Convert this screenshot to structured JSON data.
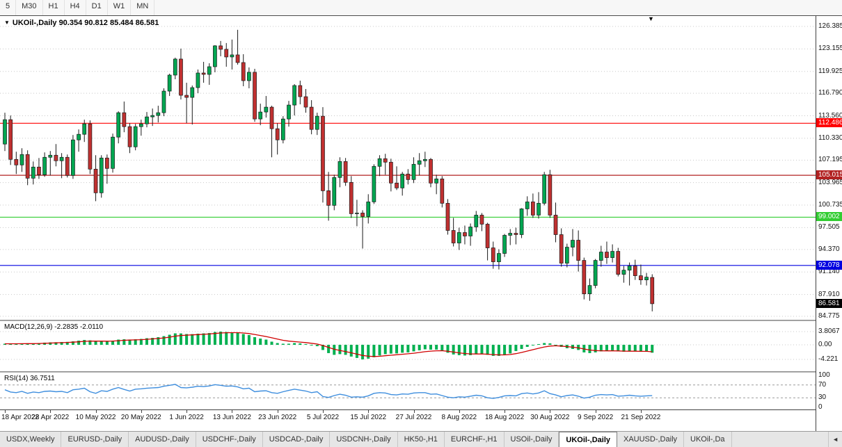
{
  "toolbar": {
    "periods": [
      "5",
      "M30",
      "H1",
      "H4",
      "D1",
      "W1",
      "MN"
    ]
  },
  "chart": {
    "collapse_icon": "▼",
    "symbol_title": "UKOil-,Daily",
    "ohlc_text": "90.354 90.812 85.484 86.581",
    "shift_marker_icon": "▼",
    "price_axis_labels": [
      "126.385",
      "123.155",
      "119.925",
      "116.790",
      "113.560",
      "110.330",
      "107.195",
      "103.965",
      "100.735",
      "97.505",
      "94.370",
      "91.140",
      "87.910",
      "84.775"
    ],
    "levels": [
      {
        "price": 112.486,
        "label": "112.486",
        "color": "#FF0000"
      },
      {
        "price": 105.015,
        "label": "105.015",
        "color": "#B22222"
      },
      {
        "price": 99.002,
        "label": "99.002",
        "color": "#32CD32"
      },
      {
        "price": 92.078,
        "label": "92.078",
        "color": "#0000E0"
      }
    ],
    "current_price": {
      "price": 86.581,
      "label": "86.581",
      "color": "#000000"
    }
  },
  "chart_data": {
    "type": "candlestick",
    "symbol": "UKOil-",
    "timeframe": "Daily",
    "title": "UKOil-,Daily 90.354 90.812 85.484 86.581",
    "y_axis": {
      "max": 126.385,
      "min": 84.775
    },
    "x_labels": [
      {
        "i": 0,
        "label": "18 Apr 2022"
      },
      {
        "i": 8,
        "label": "28 Apr 2022"
      },
      {
        "i": 16,
        "label": "10 May 2022"
      },
      {
        "i": 24,
        "label": "20 May 2022"
      },
      {
        "i": 32,
        "label": "1 Jun 2022"
      },
      {
        "i": 40,
        "label": "13 Jun 2022"
      },
      {
        "i": 48,
        "label": "23 Jun 2022"
      },
      {
        "i": 56,
        "label": "5 Jul 2022"
      },
      {
        "i": 64,
        "label": "15 Jul 2022"
      },
      {
        "i": 72,
        "label": "27 Jul 2022"
      },
      {
        "i": 80,
        "label": "8 Aug 2022"
      },
      {
        "i": 88,
        "label": "18 Aug 2022"
      },
      {
        "i": 96,
        "label": "30 Aug 2022"
      },
      {
        "i": 104,
        "label": "9 Sep 2022"
      },
      {
        "i": 112,
        "label": "21 Sep 2022"
      }
    ],
    "candles": [
      [
        109.5,
        114.0,
        108.5,
        113.0
      ],
      [
        113.0,
        113.6,
        106.5,
        107.3
      ],
      [
        107.3,
        108.4,
        105.2,
        106.5
      ],
      [
        106.5,
        108.9,
        105.5,
        108.0
      ],
      [
        108.0,
        108.6,
        103.6,
        104.6
      ],
      [
        104.6,
        107.0,
        103.7,
        106.2
      ],
      [
        106.2,
        107.5,
        104.5,
        105.1
      ],
      [
        105.1,
        108.3,
        104.8,
        107.6
      ],
      [
        107.6,
        108.5,
        105.0,
        107.9
      ],
      [
        107.9,
        109.5,
        106.3,
        107.1
      ],
      [
        107.1,
        108.2,
        104.6,
        107.6
      ],
      [
        107.6,
        108.0,
        104.7,
        105.0
      ],
      [
        105.0,
        110.8,
        104.5,
        110.1
      ],
      [
        110.1,
        111.6,
        108.4,
        110.9
      ],
      [
        110.9,
        113.0,
        109.8,
        112.4
      ],
      [
        112.4,
        112.9,
        105.2,
        105.9
      ],
      [
        105.9,
        107.9,
        101.3,
        102.5
      ],
      [
        102.5,
        107.9,
        101.8,
        107.5
      ],
      [
        107.5,
        108.0,
        103.8,
        106.0
      ],
      [
        106.0,
        111.0,
        105.4,
        110.5
      ],
      [
        110.5,
        114.2,
        109.6,
        114.0
      ],
      [
        114.0,
        115.6,
        111.2,
        112.0
      ],
      [
        112.0,
        112.5,
        108.2,
        109.1
      ],
      [
        109.1,
        112.4,
        108.6,
        112.0
      ],
      [
        112.0,
        113.0,
        110.7,
        112.4
      ],
      [
        112.4,
        114.1,
        111.9,
        113.4
      ],
      [
        113.4,
        114.6,
        112.1,
        113.6
      ],
      [
        113.6,
        115.0,
        112.6,
        114.0
      ],
      [
        114.0,
        117.5,
        113.5,
        117.1
      ],
      [
        117.1,
        119.6,
        116.4,
        119.4
      ],
      [
        119.4,
        121.9,
        118.8,
        121.7
      ],
      [
        121.7,
        123.2,
        115.9,
        116.5
      ],
      [
        116.5,
        118.3,
        112.5,
        116.2
      ],
      [
        116.2,
        117.9,
        112.3,
        117.6
      ],
      [
        117.6,
        120.2,
        116.8,
        119.7
      ],
      [
        119.7,
        121.3,
        118.3,
        119.5
      ],
      [
        119.5,
        121.1,
        118.0,
        120.6
      ],
      [
        120.6,
        123.7,
        119.8,
        123.6
      ],
      [
        123.6,
        124.3,
        122.1,
        123.1
      ],
      [
        123.1,
        124.0,
        120.6,
        122.0
      ],
      [
        122.0,
        124.5,
        120.2,
        122.3
      ],
      [
        122.3,
        125.9,
        120.9,
        121.2
      ],
      [
        121.2,
        122.4,
        117.8,
        118.6
      ],
      [
        118.6,
        120.5,
        117.5,
        119.8
      ],
      [
        119.8,
        120.3,
        112.7,
        113.1
      ],
      [
        113.1,
        115.3,
        112.2,
        114.1
      ],
      [
        114.1,
        116.4,
        113.3,
        114.8
      ],
      [
        114.8,
        115.0,
        107.6,
        111.7
      ],
      [
        111.7,
        112.5,
        108.0,
        110.1
      ],
      [
        110.1,
        113.5,
        109.6,
        113.1
      ],
      [
        113.1,
        115.7,
        112.0,
        115.1
      ],
      [
        115.1,
        118.1,
        113.6,
        117.9
      ],
      [
        117.9,
        118.6,
        115.2,
        116.3
      ],
      [
        116.3,
        117.4,
        114.0,
        114.8
      ],
      [
        114.8,
        115.8,
        110.9,
        111.6
      ],
      [
        111.6,
        114.0,
        110.8,
        113.5
      ],
      [
        113.5,
        114.8,
        101.1,
        102.8
      ],
      [
        102.8,
        105.5,
        98.5,
        100.7
      ],
      [
        100.7,
        105.1,
        100.0,
        104.7
      ],
      [
        104.7,
        107.6,
        103.3,
        107.0
      ],
      [
        107.0,
        107.5,
        103.5,
        104.0
      ],
      [
        104.0,
        104.9,
        98.9,
        99.5
      ],
      [
        99.5,
        101.5,
        97.7,
        99.6
      ],
      [
        99.6,
        100.0,
        94.5,
        99.1
      ],
      [
        99.1,
        102.3,
        98.1,
        101.2
      ],
      [
        101.2,
        106.6,
        100.9,
        106.3
      ],
      [
        106.3,
        107.9,
        104.9,
        107.4
      ],
      [
        107.4,
        108.1,
        105.1,
        106.9
      ],
      [
        106.9,
        107.4,
        102.7,
        103.9
      ],
      [
        103.9,
        106.3,
        102.9,
        103.2
      ],
      [
        103.2,
        105.5,
        102.1,
        105.2
      ],
      [
        105.2,
        105.9,
        103.7,
        104.4
      ],
      [
        104.4,
        107.6,
        103.9,
        106.6
      ],
      [
        106.6,
        108.2,
        105.0,
        107.1
      ],
      [
        107.1,
        108.4,
        106.2,
        107.3
      ],
      [
        107.3,
        107.5,
        103.3,
        103.9
      ],
      [
        103.9,
        105.1,
        102.3,
        104.5
      ],
      [
        104.5,
        104.9,
        100.4,
        101.0
      ],
      [
        101.0,
        101.6,
        96.5,
        97.1
      ],
      [
        97.1,
        98.9,
        94.8,
        95.3
      ],
      [
        95.3,
        97.5,
        94.3,
        96.8
      ],
      [
        96.8,
        97.8,
        95.1,
        96.3
      ],
      [
        96.3,
        98.1,
        94.9,
        97.6
      ],
      [
        97.6,
        99.9,
        96.9,
        99.3
      ],
      [
        99.3,
        99.6,
        97.0,
        98.0
      ],
      [
        98.0,
        98.2,
        92.8,
        94.6
      ],
      [
        94.6,
        95.5,
        91.6,
        92.6
      ],
      [
        92.6,
        94.4,
        91.5,
        93.8
      ],
      [
        93.8,
        96.6,
        93.3,
        96.4
      ],
      [
        96.4,
        97.3,
        95.0,
        96.7
      ],
      [
        96.7,
        97.5,
        95.1,
        96.5
      ],
      [
        96.5,
        100.3,
        96.0,
        100.2
      ],
      [
        100.2,
        102.0,
        99.2,
        101.2
      ],
      [
        101.2,
        102.4,
        98.9,
        99.3
      ],
      [
        99.3,
        102.6,
        98.8,
        101.0
      ],
      [
        101.0,
        105.5,
        100.7,
        105.1
      ],
      [
        105.1,
        105.8,
        98.9,
        99.3
      ],
      [
        99.3,
        101.1,
        95.4,
        96.5
      ],
      [
        96.5,
        97.4,
        91.9,
        92.4
      ],
      [
        92.4,
        95.2,
        91.8,
        94.7
      ],
      [
        94.7,
        97.3,
        93.4,
        95.7
      ],
      [
        95.7,
        97.1,
        91.2,
        92.8
      ],
      [
        92.8,
        93.2,
        87.2,
        88.0
      ],
      [
        88.0,
        90.2,
        87.0,
        89.2
      ],
      [
        89.2,
        93.0,
        88.8,
        92.8
      ],
      [
        92.8,
        94.9,
        91.9,
        94.0
      ],
      [
        94.0,
        95.5,
        92.3,
        93.2
      ],
      [
        93.2,
        95.1,
        92.5,
        94.1
      ],
      [
        94.1,
        94.6,
        90.5,
        90.8
      ],
      [
        90.8,
        92.0,
        89.6,
        91.4
      ],
      [
        91.4,
        92.5,
        89.2,
        92.0
      ],
      [
        92.0,
        92.9,
        90.0,
        90.6
      ],
      [
        90.6,
        92.2,
        89.3,
        90.0
      ],
      [
        90.0,
        91.0,
        89.2,
        90.4
      ],
      [
        90.354,
        90.812,
        85.484,
        86.581
      ]
    ]
  },
  "macd": {
    "label": "MACD(12,26,9)",
    "values_text": "-2.2835 -2.0110",
    "y_axis": {
      "max": 3.8067,
      "min": -4.221
    },
    "axis_labels": [
      {
        "v": 3.8067,
        "label": "3.8067"
      },
      {
        "v": 0,
        "label": "0.00"
      },
      {
        "v": -4.221,
        "label": "-4.221"
      }
    ],
    "histogram": [
      0.3,
      0.32,
      0.3,
      0.38,
      0.34,
      0.4,
      0.5,
      0.62,
      0.7,
      0.74,
      0.8,
      0.84,
      1.0,
      1.2,
      1.4,
      1.28,
      1.08,
      1.02,
      1.0,
      1.2,
      1.5,
      1.6,
      1.52,
      1.6,
      1.7,
      1.9,
      2.0,
      2.2,
      2.5,
      2.9,
      3.3,
      3.28,
      3.1,
      3.08,
      3.2,
      3.3,
      3.4,
      3.7,
      3.81,
      3.7,
      3.6,
      3.5,
      3.1,
      2.8,
      2.2,
      1.8,
      1.5,
      0.9,
      0.5,
      0.3,
      0.3,
      0.5,
      0.4,
      0.2,
      -0.2,
      -0.4,
      -1.5,
      -2.4,
      -2.9,
      -2.7,
      -2.9,
      -3.4,
      -3.8,
      -4.22,
      -4.0,
      -3.6,
      -3.1,
      -2.7,
      -2.55,
      -2.5,
      -2.3,
      -2.2,
      -1.9,
      -1.6,
      -1.3,
      -1.4,
      -1.4,
      -1.7,
      -2.3,
      -2.8,
      -3.0,
      -3.1,
      -3.0,
      -2.7,
      -2.6,
      -2.9,
      -3.2,
      -3.2,
      -2.9,
      -2.5,
      -1.8,
      -1.2,
      -0.6,
      -0.2,
      0.2,
      0.5,
      0.4,
      0.0,
      -0.6,
      -1.0,
      -1.2,
      -1.5,
      -2.2,
      -2.4,
      -2.2,
      -1.9,
      -1.8,
      -1.7,
      -1.9,
      -2.0,
      -1.9,
      -1.9,
      -2.0,
      -1.9,
      -2.2835
    ],
    "signal": [
      0.3,
      0.3,
      0.3,
      0.32,
      0.33,
      0.34,
      0.38,
      0.44,
      0.5,
      0.56,
      0.62,
      0.67,
      0.75,
      0.86,
      0.99,
      1.06,
      1.07,
      1.06,
      1.04,
      1.08,
      1.18,
      1.29,
      1.35,
      1.41,
      1.48,
      1.58,
      1.69,
      1.81,
      1.98,
      2.21,
      2.48,
      2.68,
      2.79,
      2.86,
      2.94,
      3.03,
      3.12,
      3.27,
      3.4,
      3.48,
      3.51,
      3.5,
      3.4,
      3.25,
      2.99,
      2.69,
      2.39,
      2.02,
      1.64,
      1.3,
      1.05,
      0.91,
      0.78,
      0.64,
      0.43,
      0.22,
      -0.21,
      -0.76,
      -1.29,
      -1.64,
      -1.96,
      -2.32,
      -2.69,
      -3.07,
      -3.3,
      -3.38,
      -3.31,
      -3.16,
      -3.01,
      -2.88,
      -2.73,
      -2.6,
      -2.43,
      -2.22,
      -1.99,
      -1.84,
      -1.73,
      -1.72,
      -1.87,
      -2.1,
      -2.33,
      -2.52,
      -2.64,
      -2.65,
      -2.64,
      -2.71,
      -2.83,
      -2.92,
      -2.92,
      -2.81,
      -2.56,
      -2.22,
      -1.82,
      -1.41,
      -1.01,
      -0.63,
      -0.37,
      -0.28,
      -0.36,
      -0.52,
      -0.69,
      -0.89,
      -1.22,
      -1.51,
      -1.68,
      -1.74,
      -1.75,
      -1.74,
      -1.78,
      -1.84,
      -1.85,
      -1.86,
      -1.9,
      -1.9,
      -2.011
    ],
    "colors": {
      "histogram": "#00B050",
      "signal": "#D00000"
    }
  },
  "rsi": {
    "label": "RSI(14)",
    "value_text": "36.7511",
    "y_axis": {
      "max": 100,
      "min": 0
    },
    "axis_labels": [
      {
        "v": 100,
        "label": "100"
      },
      {
        "v": 70,
        "label": "70"
      },
      {
        "v": 30,
        "label": "30"
      },
      {
        "v": 0,
        "label": "0"
      }
    ],
    "levels": [
      70,
      30
    ],
    "values": [
      55,
      48,
      46,
      50,
      44,
      48,
      46,
      50,
      51,
      49,
      50,
      46,
      55,
      57,
      60,
      49,
      44,
      52,
      50,
      57,
      62,
      56,
      51,
      57,
      58,
      60,
      61,
      62,
      66,
      69,
      72,
      62,
      61,
      63,
      66,
      65,
      67,
      71,
      69,
      66,
      67,
      64,
      58,
      60,
      49,
      51,
      52,
      46,
      44,
      49,
      53,
      57,
      54,
      51,
      46,
      49,
      34,
      31,
      37,
      41,
      38,
      32,
      33,
      32,
      36,
      44,
      46,
      45,
      40,
      39,
      42,
      41,
      45,
      46,
      46,
      41,
      42,
      37,
      32,
      30,
      33,
      32,
      35,
      38,
      36,
      30,
      28,
      31,
      36,
      37,
      36,
      43,
      45,
      42,
      45,
      52,
      43,
      39,
      33,
      37,
      39,
      35,
      29,
      32,
      38,
      40,
      39,
      40,
      35,
      36,
      38,
      36,
      35,
      36,
      36.7511
    ],
    "color": "#3E8EDE"
  },
  "tabs": {
    "items": [
      {
        "label": "USDX,Weekly"
      },
      {
        "label": "EURUSD-,Daily"
      },
      {
        "label": "AUDUSD-,Daily"
      },
      {
        "label": "USDCHF-,Daily"
      },
      {
        "label": "USDCAD-,Daily"
      },
      {
        "label": "USDCNH-,Daily"
      },
      {
        "label": "HK50-,H1"
      },
      {
        "label": "EURCHF-,H1"
      },
      {
        "label": "USOil-,Daily"
      },
      {
        "label": "UKOil-,Daily",
        "active": true
      },
      {
        "label": "XAUUSD-,Daily"
      },
      {
        "label": "UKOil-,Da",
        "truncated": true
      }
    ],
    "scroll_left_icon": "◄"
  },
  "colors": {
    "bull": "#00A651",
    "bear": "#C03030",
    "outline": "#1A1A1A",
    "grid": "#C8C8C8"
  }
}
